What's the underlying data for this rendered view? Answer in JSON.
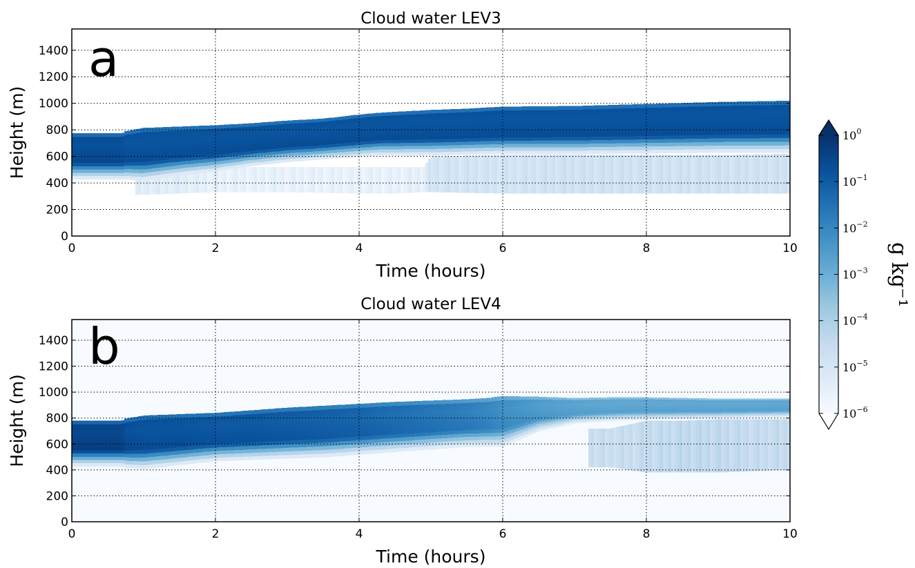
{
  "chart_data": [
    {
      "type": "heatmap",
      "panel_label": "a",
      "title": "Cloud water LEV3",
      "xlabel": "Time (hours)",
      "ylabel": "Height (m)",
      "xlim": [
        0,
        10
      ],
      "ylim": [
        0,
        1560
      ],
      "xticks": [
        0,
        2,
        4,
        6,
        8,
        10
      ],
      "yticks": [
        0,
        200,
        400,
        600,
        800,
        1000,
        1200,
        1400
      ],
      "grid": true,
      "background_value": 0,
      "cloud_layer": {
        "time_hours": [
          0,
          0.7,
          0.75,
          1,
          1.5,
          2,
          2.5,
          3,
          3.5,
          4,
          4.3,
          5,
          5.5,
          6,
          7,
          8,
          9,
          10
        ],
        "top_m": [
          775,
          775,
          790,
          815,
          825,
          835,
          850,
          870,
          885,
          915,
          930,
          950,
          960,
          975,
          980,
          995,
          1010,
          1020
        ],
        "base_m": [
          430,
          430,
          430,
          420,
          460,
          490,
          530,
          560,
          580,
          600,
          610,
          610,
          615,
          620,
          620,
          625,
          630,
          630
        ],
        "core_log10_g_per_kg": [
          -0.5,
          -0.5,
          -0.6,
          -0.6,
          -0.6,
          -0.6,
          -0.6,
          -0.6,
          -0.6,
          -0.6,
          -0.6,
          -0.6,
          -0.6,
          -0.6,
          -0.6,
          -0.6,
          -0.6,
          -0.6
        ]
      },
      "drizzle_layer": {
        "time_hours": [
          0.9,
          1.5,
          2,
          3,
          4,
          4.5,
          4.9,
          5,
          6,
          7,
          8,
          9,
          10
        ],
        "top_m": [
          470,
          500,
          520,
          520,
          520,
          520,
          520,
          600,
          610,
          610,
          610,
          610,
          620
        ],
        "base_m": [
          310,
          320,
          330,
          330,
          320,
          320,
          330,
          330,
          320,
          320,
          320,
          320,
          320
        ],
        "log10_g_per_kg": [
          -5.3,
          -5.3,
          -5.5,
          -5.5,
          -5.5,
          -5.5,
          -5.4,
          -4.9,
          -4.9,
          -4.8,
          -4.8,
          -4.8,
          -4.8
        ]
      }
    },
    {
      "type": "heatmap",
      "panel_label": "b",
      "title": "Cloud water LEV4",
      "xlabel": "Time (hours)",
      "ylabel": "Height (m)",
      "xlim": [
        0,
        10
      ],
      "ylim": [
        0,
        1560
      ],
      "xticks": [
        0,
        2,
        4,
        6,
        8,
        10
      ],
      "yticks": [
        0,
        200,
        400,
        600,
        800,
        1000,
        1200,
        1400
      ],
      "grid": true,
      "background_log10_g_per_kg": -6,
      "cloud_layer": {
        "time_hours": [
          0,
          0.7,
          0.75,
          1,
          1.5,
          2,
          2.5,
          3,
          3.5,
          4,
          4.5,
          5,
          5.5,
          5.8,
          6,
          6.5,
          7,
          7.5,
          8,
          9,
          10
        ],
        "top_m": [
          780,
          780,
          795,
          820,
          830,
          840,
          860,
          880,
          895,
          910,
          925,
          935,
          945,
          955,
          970,
          965,
          955,
          960,
          960,
          950,
          950
        ],
        "base_m": [
          430,
          430,
          420,
          410,
          440,
          470,
          480,
          490,
          500,
          520,
          540,
          560,
          580,
          580,
          580,
          700,
          760,
          780,
          790,
          800,
          810
        ],
        "core_log10_g_per_kg": [
          -0.3,
          -0.3,
          -0.5,
          -0.6,
          -0.6,
          -0.7,
          -0.7,
          -0.8,
          -0.9,
          -1.0,
          -1.2,
          -1.4,
          -1.6,
          -1.8,
          -2.0,
          -2.3,
          -2.5,
          -2.6,
          -2.6,
          -2.6,
          -2.6
        ]
      },
      "drizzle_layer": {
        "time_hours": [
          7.2,
          7.5,
          8,
          8.5,
          9,
          9.5,
          10
        ],
        "top_m": [
          720,
          720,
          780,
          780,
          790,
          790,
          790
        ],
        "base_m": [
          420,
          420,
          380,
          380,
          380,
          390,
          400
        ],
        "log10_g_per_kg": [
          -4.6,
          -4.6,
          -4.5,
          -4.4,
          -4.4,
          -4.5,
          -4.5
        ]
      }
    }
  ],
  "colorbar": {
    "label": "g kg⁻¹",
    "scale": "log",
    "min": 1e-06,
    "max": 1,
    "extend": "both",
    "colors": [
      "#f7fbff",
      "#deebf7",
      "#c6dbef",
      "#9ecae1",
      "#6baed6",
      "#4292c6",
      "#2171b5",
      "#08519c",
      "#08306b"
    ],
    "ticks": [
      {
        "base": "10",
        "exp": "0"
      },
      {
        "base": "10",
        "exp": "−1"
      },
      {
        "base": "10",
        "exp": "−2"
      },
      {
        "base": "10",
        "exp": "−3"
      },
      {
        "base": "10",
        "exp": "−4"
      },
      {
        "base": "10",
        "exp": "−5"
      },
      {
        "base": "10",
        "exp": "−6"
      }
    ]
  }
}
